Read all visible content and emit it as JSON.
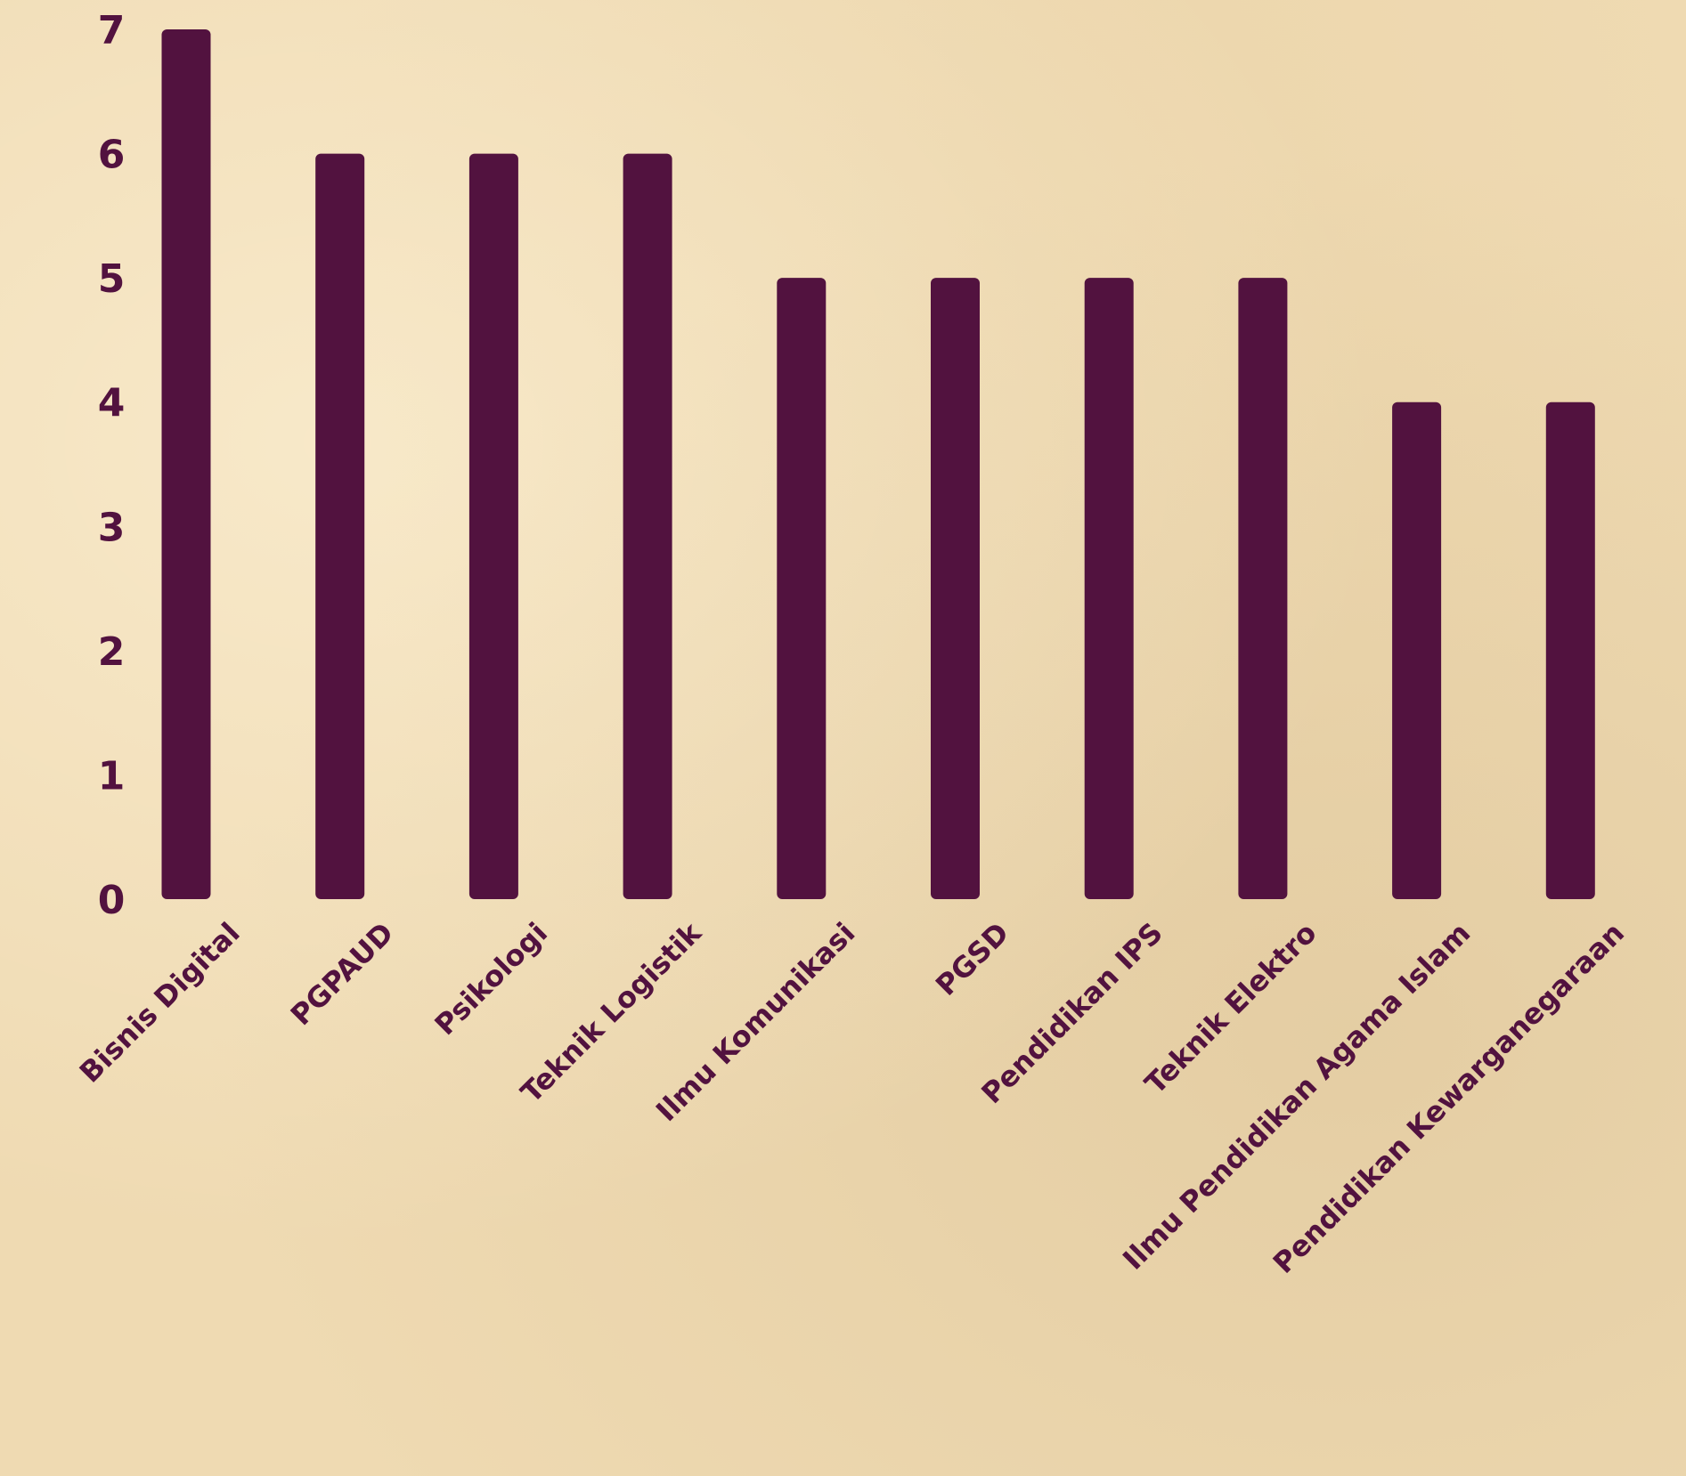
{
  "chart_data": {
    "type": "bar",
    "categories": [
      "Bisnis Digital",
      "PGPAUD",
      "Psikologi",
      "Teknik Logistik",
      "Ilmu Komunikasi",
      "PGSD",
      "Pendidikan IPS",
      "Teknik Elektro",
      "Ilmu Pendidikan Agama Islam",
      "Pendidikan Kewarganegaraan"
    ],
    "values": [
      7,
      6,
      6,
      6,
      5,
      5,
      5,
      5,
      4,
      4
    ],
    "yticks": [
      "0",
      "1",
      "2",
      "3",
      "4",
      "5",
      "6",
      "7"
    ],
    "ylim": [
      0,
      7
    ],
    "grid": false,
    "legend": "none",
    "colors": {
      "bar": "#52123f",
      "text": "#52123f",
      "background": "#efdab2"
    }
  }
}
